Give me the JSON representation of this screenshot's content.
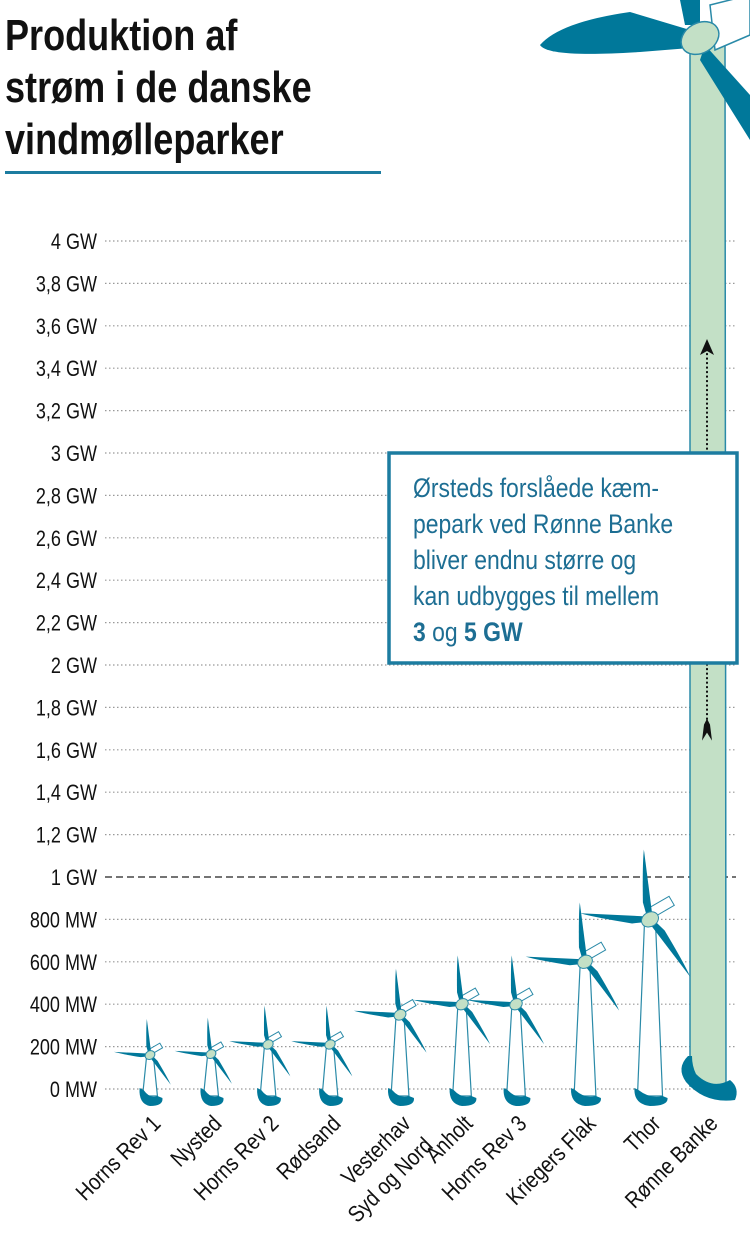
{
  "chart_data": {
    "type": "bar",
    "title": "Produktion af strøm i de danske vindmølleparker",
    "title_lines": [
      "Produktion af",
      "strøm i de danske",
      "vindmølleparker"
    ],
    "xlabel": "",
    "ylabel": "",
    "ylim": [
      0,
      4000
    ],
    "y_unit": "MW",
    "yticks": [
      0,
      200,
      400,
      600,
      800,
      1000,
      1200,
      1400,
      1600,
      1800,
      2000,
      2200,
      2400,
      2600,
      2800,
      3000,
      3200,
      3400,
      3600,
      3800,
      4000
    ],
    "ytick_labels": [
      "0 MW",
      "200 MW",
      "400 MW",
      "600 MW",
      "800 MW",
      "1 GW",
      "1,2 GW",
      "1,4 GW",
      "1,6 GW",
      "1,8 GW",
      "2 GW",
      "2,2 GW",
      "2,4 GW",
      "2,6 GW",
      "2,8 GW",
      "3 GW",
      "3,2 GW",
      "3,4 GW",
      "3,6 GW",
      "3,8 GW",
      "4 GW"
    ],
    "grid": true,
    "reference_line": 1000,
    "categories": [
      "Horns Rev 1",
      "Nysted",
      "Horns Rev 2",
      "Rødsand",
      "Vesterhav Syd og Nord",
      "Anholt",
      "Horns Rev 3",
      "Kriegers Flak",
      "Thor",
      "Rønne Banke"
    ],
    "category_lines": [
      [
        "Horns Rev 1"
      ],
      [
        "Nysted"
      ],
      [
        "Horns Rev 2"
      ],
      [
        "Rødsand"
      ],
      [
        "Vesterhav",
        "Syd og Nord"
      ],
      [
        "Anholt"
      ],
      [
        "Horns Rev 3"
      ],
      [
        "Kriegers Flak"
      ],
      [
        "Thor"
      ],
      [
        "Rønne Banke"
      ]
    ],
    "values": [
      160,
      165,
      210,
      210,
      350,
      400,
      400,
      600,
      800,
      null
    ],
    "range_values": {
      "Rønne Banke": [
        3000,
        5000
      ]
    },
    "mark_style": "wind-turbine-pictogram",
    "annotation": {
      "lines": [
        "Ørsteds forslåede kæm-",
        "pepark ved Rønne Banke",
        "bliver endnu større og",
        "kan udbygges til mellem"
      ],
      "last_line": {
        "bold1": "3",
        "normal": " og ",
        "bold2": "5 GW"
      }
    },
    "colors": {
      "blade": "#00789a",
      "tower_fill": "#ffffff",
      "tower_outline": "#2a8aa8",
      "hub": "#c3e0c6",
      "giant_tower": "#c3e0c6",
      "text": "#111111",
      "annotation_text": "#1d6e93",
      "rule": "#1c7ca0"
    }
  }
}
